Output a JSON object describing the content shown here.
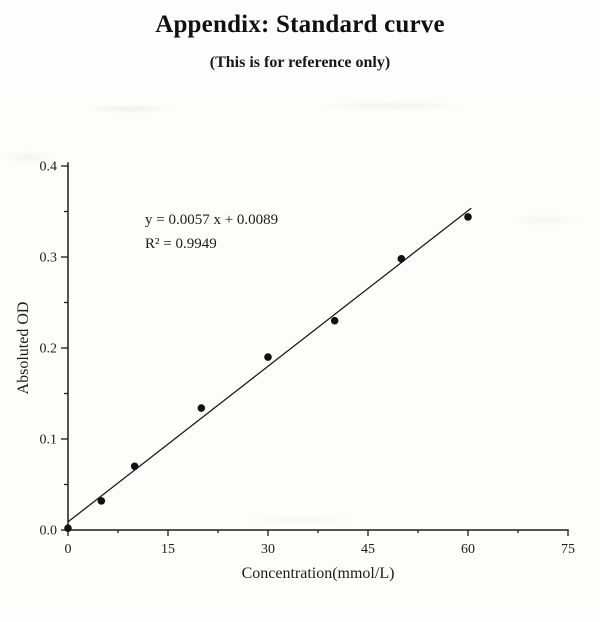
{
  "page": {
    "title": "Appendix: Standard curve",
    "subtitle": "(This is for reference only)"
  },
  "chart_data": {
    "type": "scatter",
    "title": "",
    "xlabel": "Concentration(mmol/L)",
    "ylabel": "Absoluted OD",
    "xlim": [
      0,
      75
    ],
    "ylim": [
      0,
      0.4
    ],
    "grid": false,
    "legend": "none",
    "ink_color": "#1c1c1c",
    "x": [
      0,
      5,
      10,
      20,
      30,
      40,
      50,
      60
    ],
    "y": [
      0.002,
      0.032,
      0.07,
      0.134,
      0.19,
      0.23,
      0.298,
      0.344
    ],
    "fit_line": {
      "slope": 0.0057,
      "intercept": 0.0089,
      "x_start": 0,
      "x_end": 60.5
    },
    "annotation_lines": [
      "y = 0.0057 x + 0.0089",
      "R² = 0.9949"
    ],
    "x_major_ticks": {
      "values": [
        0,
        15,
        30,
        45,
        60,
        75
      ],
      "labels": [
        "0",
        "15",
        "30",
        "45",
        "60",
        "75"
      ]
    },
    "y_major_ticks": {
      "values": [
        0,
        0.1,
        0.2,
        0.3,
        0.4
      ],
      "labels": [
        "0.0",
        "0.1",
        "0.2",
        "0.3",
        "0.4"
      ]
    },
    "x_minor_ticks": [
      7.5,
      22.5,
      37.5,
      52.5,
      67.5
    ],
    "y_minor_ticks": [
      0.05,
      0.15,
      0.25,
      0.35
    ]
  }
}
